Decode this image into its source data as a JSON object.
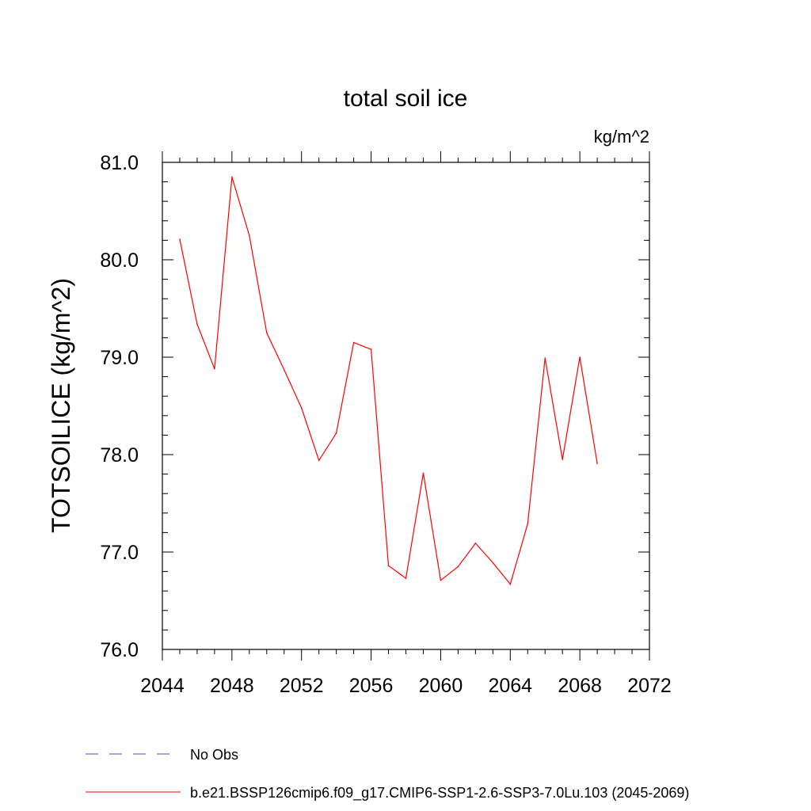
{
  "chart_data": {
    "type": "line",
    "title": "total soil ice",
    "units_label": "kg/m^2",
    "ylabel": "TOTSOILICE  (kg/m^2)",
    "xlabel": "",
    "xlim": [
      2044,
      2072
    ],
    "ylim": [
      76.0,
      81.0
    ],
    "x_ticks": [
      2044,
      2048,
      2052,
      2056,
      2060,
      2064,
      2068,
      2072
    ],
    "x_tick_labels": [
      "2044",
      "2048",
      "2052",
      "2056",
      "2060",
      "2064",
      "2068",
      "2072"
    ],
    "y_ticks": [
      76.0,
      77.0,
      78.0,
      79.0,
      80.0,
      81.0
    ],
    "y_tick_labels": [
      "76.0",
      "77.0",
      "78.0",
      "79.0",
      "80.0",
      "81.0"
    ],
    "grid": false,
    "legend_placement": "bottom",
    "series": [
      {
        "name": "b.e21.BSSP126cmip6.f09_g17.CMIP6-SSP1-2.6-SSP3-7.0Lu.103 (2045-2069)",
        "color": "#ff0000",
        "style": "solid",
        "x": [
          2045,
          2046,
          2047,
          2048,
          2049,
          2050,
          2051,
          2052,
          2053,
          2054,
          2055,
          2056,
          2057,
          2058,
          2059,
          2060,
          2061,
          2062,
          2063,
          2064,
          2065,
          2066,
          2067,
          2068,
          2069
        ],
        "y": [
          80.21,
          79.34,
          78.88,
          80.85,
          80.25,
          79.25,
          78.87,
          78.48,
          77.94,
          78.22,
          79.15,
          79.08,
          76.86,
          76.73,
          77.81,
          76.71,
          76.85,
          77.09,
          76.89,
          76.67,
          77.29,
          78.99,
          77.95,
          79.0,
          77.91
        ]
      }
    ],
    "legend": [
      {
        "label": "No Obs",
        "color": "#5a4a9a",
        "style": "dashed"
      },
      {
        "label": "b.e21.BSSP126cmip6.f09_g17.CMIP6-SSP1-2.6-SSP3-7.0Lu.103 (2045-2069)",
        "color": "#ff0000",
        "style": "solid"
      }
    ]
  }
}
